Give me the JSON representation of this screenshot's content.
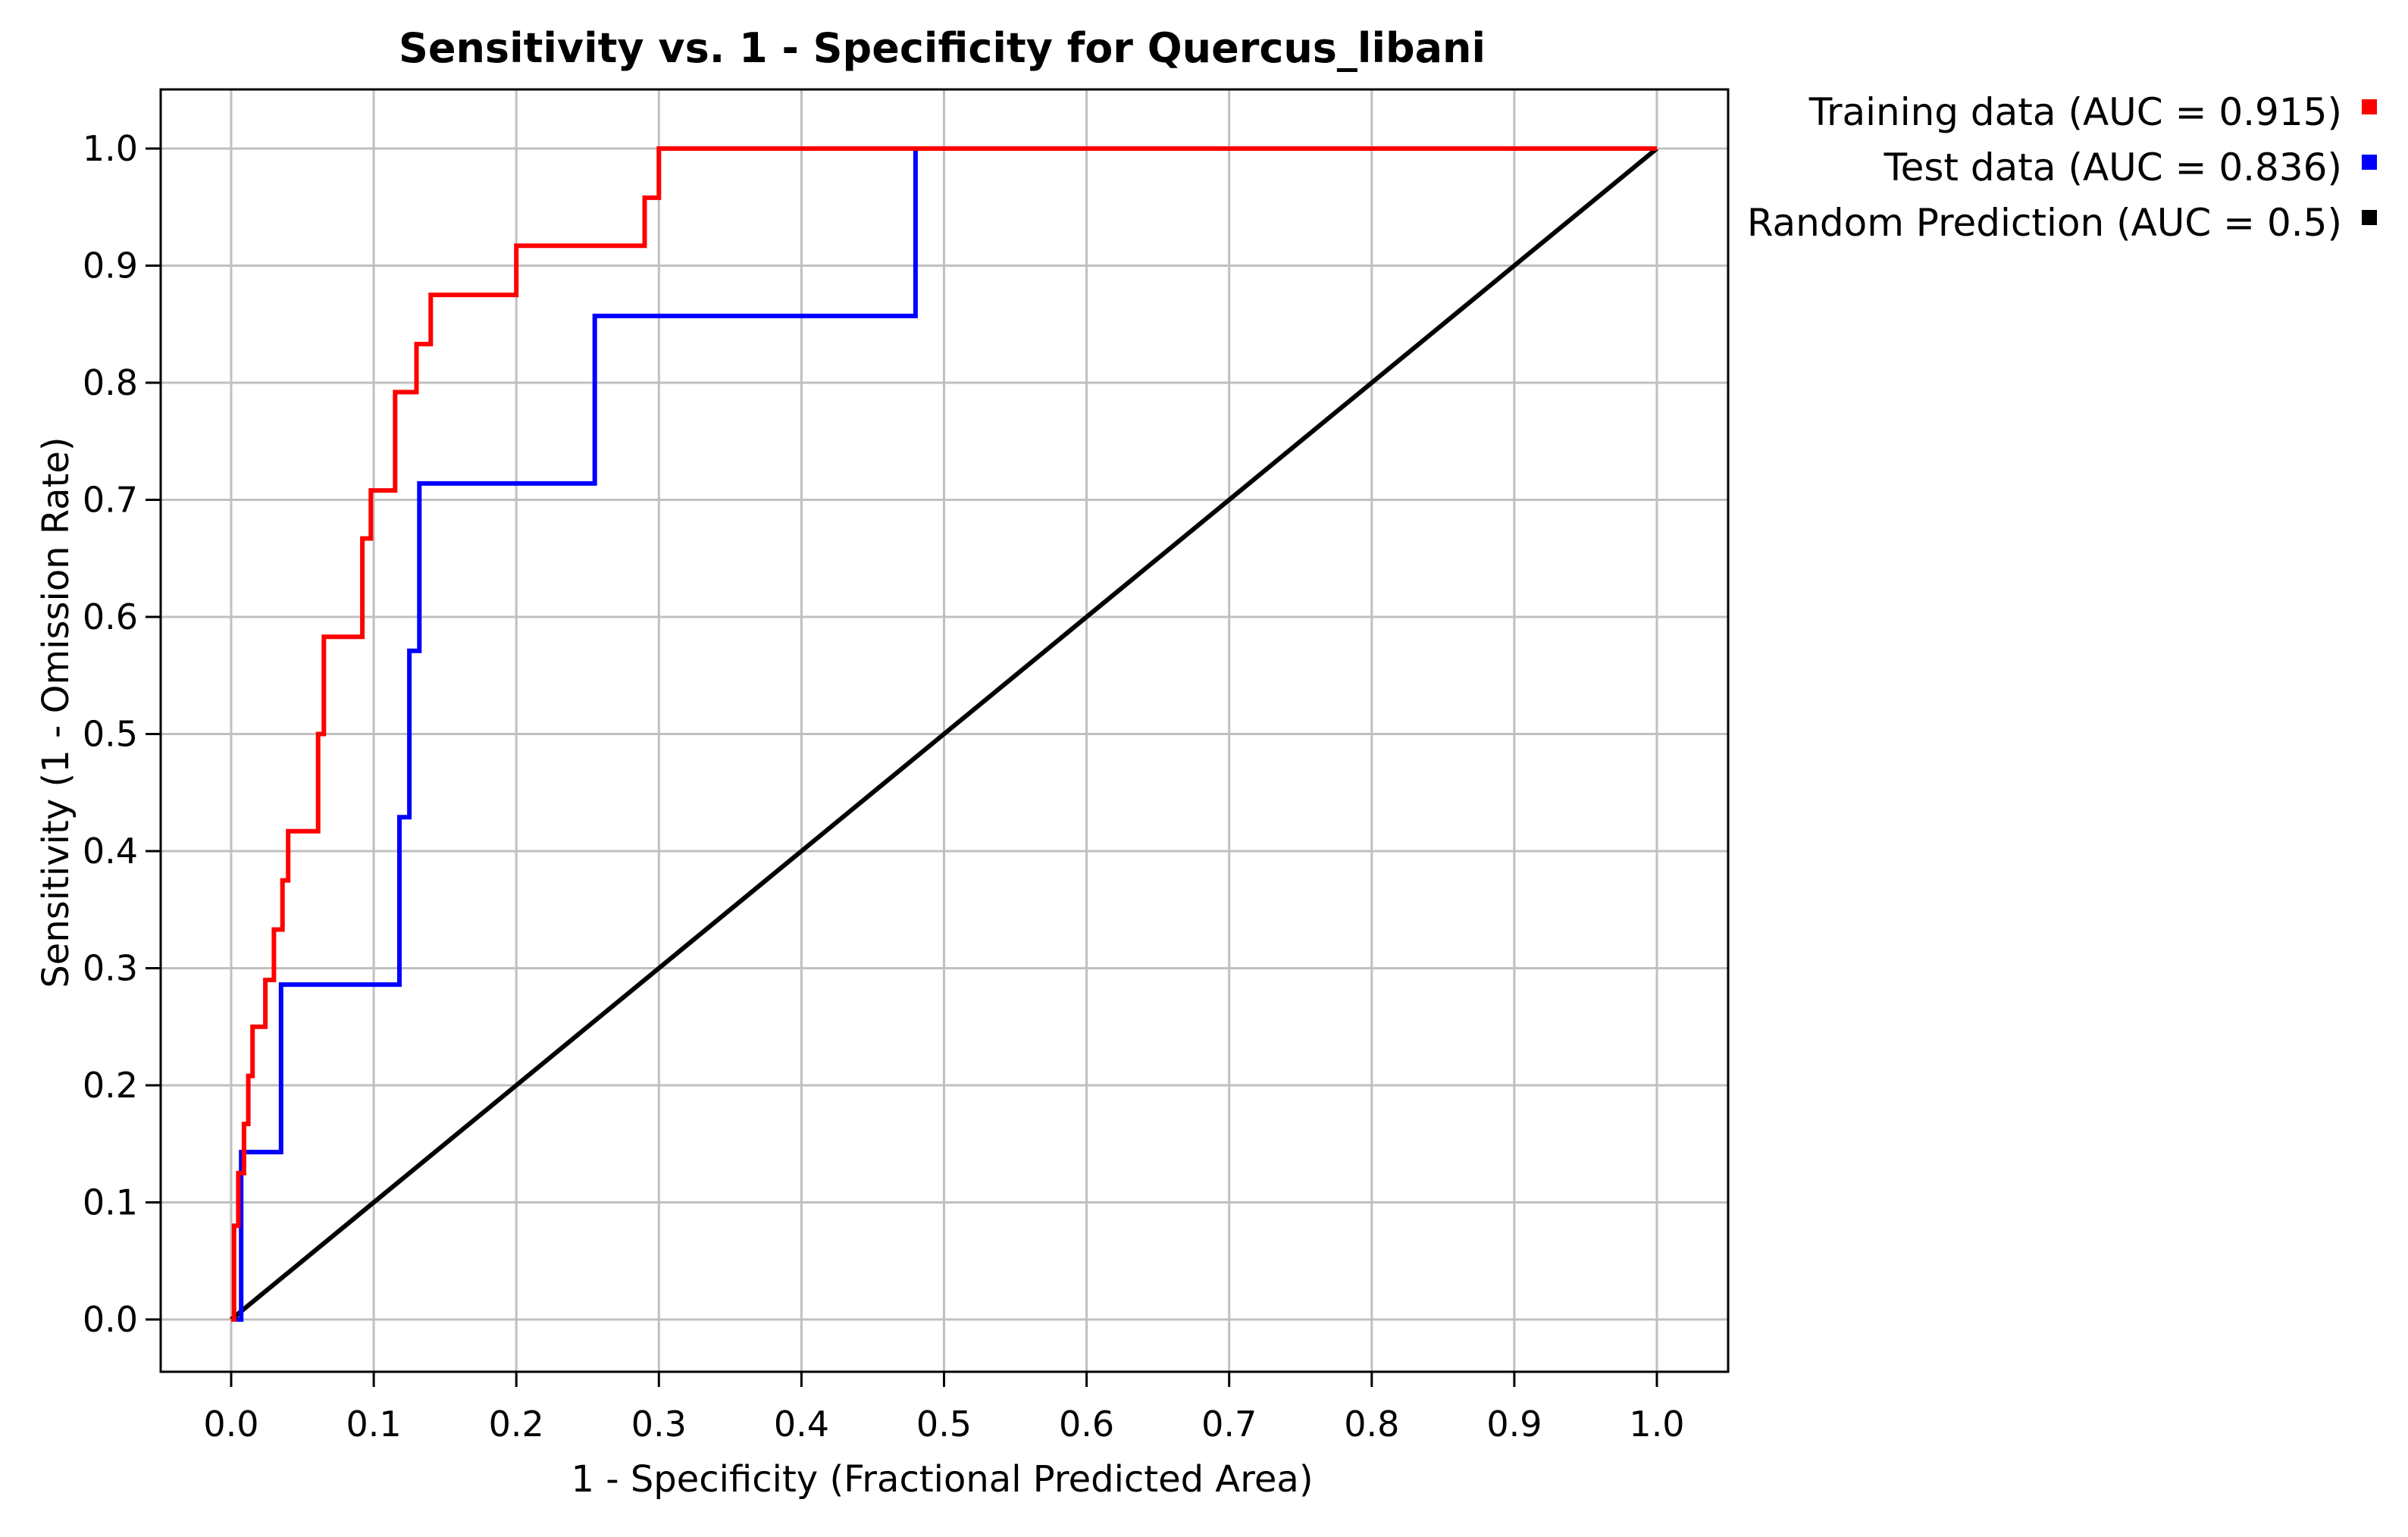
{
  "chart_data": {
    "type": "line",
    "title": "Sensitivity vs. 1 - Specificity for Quercus_libani",
    "xlabel": "1 - Specificity  (Fractional Predicted Area)",
    "ylabel": "Sensitivity  (1 - Omission Rate)",
    "xlim": [
      0,
      1
    ],
    "ylim": [
      0,
      1
    ],
    "x_ticks": [
      "0.0",
      "0.1",
      "0.2",
      "0.3",
      "0.4",
      "0.5",
      "0.6",
      "0.7",
      "0.8",
      "0.9",
      "1.0"
    ],
    "y_ticks": [
      "0.0",
      "0.1",
      "0.2",
      "0.3",
      "0.4",
      "0.5",
      "0.6",
      "0.7",
      "0.8",
      "0.9",
      "1.0"
    ],
    "grid": true,
    "legend_position": "top-right, outside plot",
    "series": [
      {
        "name": "Training data (AUC = 0.915)",
        "color": "#ff0000",
        "x": [
          0.0,
          0.002,
          0.002,
          0.005,
          0.005,
          0.009,
          0.009,
          0.012,
          0.012,
          0.015,
          0.015,
          0.017,
          0.017,
          0.024,
          0.024,
          0.03,
          0.03,
          0.036,
          0.036,
          0.04,
          0.04,
          0.045,
          0.045,
          0.061,
          0.061,
          0.065,
          0.065,
          0.075,
          0.075,
          0.092,
          0.092,
          0.098,
          0.098,
          0.102,
          0.102,
          0.115,
          0.115,
          0.12,
          0.12,
          0.13,
          0.13,
          0.14,
          0.14,
          0.2,
          0.2,
          0.29,
          0.29,
          0.3,
          0.3,
          1.0
        ],
        "y": [
          0.0,
          0.0,
          0.08,
          0.08,
          0.125,
          0.125,
          0.167,
          0.167,
          0.208,
          0.208,
          0.25,
          0.25,
          0.25,
          0.25,
          0.29,
          0.29,
          0.333,
          0.333,
          0.375,
          0.375,
          0.417,
          0.417,
          0.417,
          0.417,
          0.5,
          0.5,
          0.583,
          0.583,
          0.583,
          0.583,
          0.667,
          0.667,
          0.708,
          0.708,
          0.708,
          0.708,
          0.792,
          0.792,
          0.792,
          0.792,
          0.833,
          0.833,
          0.875,
          0.875,
          0.917,
          0.917,
          0.958,
          0.958,
          1.0,
          1.0
        ]
      },
      {
        "name": "Test data (AUC = 0.836)",
        "color": "#0000ff",
        "x": [
          0.0,
          0.007,
          0.007,
          0.035,
          0.035,
          0.118,
          0.118,
          0.125,
          0.125,
          0.132,
          0.132,
          0.255,
          0.255,
          0.48,
          0.48,
          1.0
        ],
        "y": [
          0.0,
          0.0,
          0.143,
          0.143,
          0.286,
          0.286,
          0.429,
          0.429,
          0.571,
          0.571,
          0.714,
          0.714,
          0.857,
          0.857,
          1.0,
          1.0
        ]
      },
      {
        "name": "Random Prediction (AUC = 0.5)",
        "color": "#000000",
        "x": [
          0.0,
          1.0
        ],
        "y": [
          0.0,
          1.0
        ]
      }
    ]
  }
}
